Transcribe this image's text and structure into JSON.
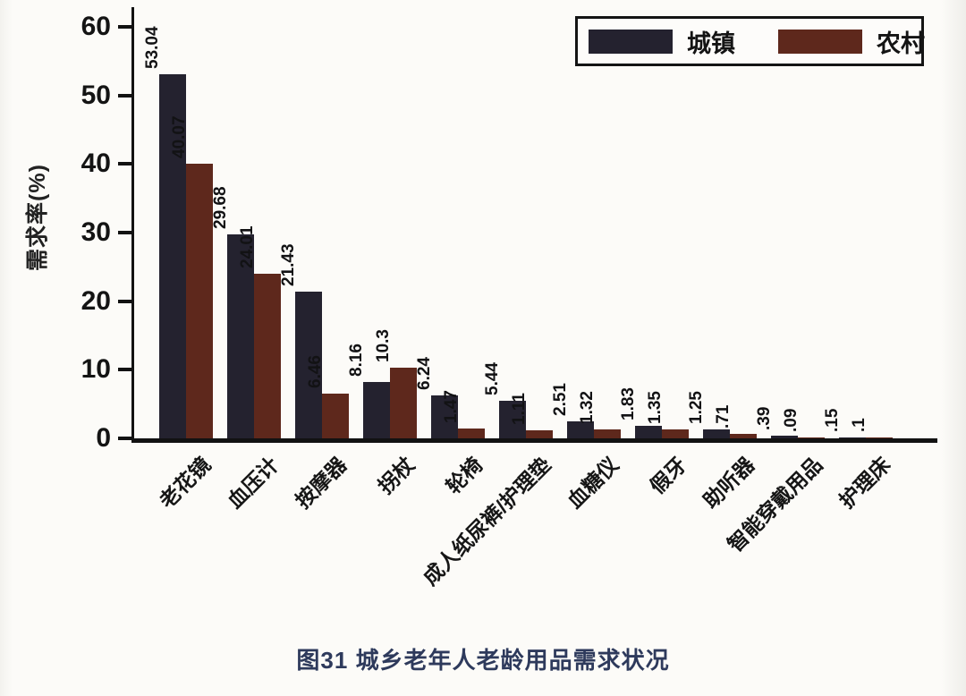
{
  "chart_data": {
    "type": "bar",
    "title": "图31 城乡老年人老龄用品需求状况",
    "xlabel": "",
    "ylabel": "需求率(%)",
    "ylim": [
      0,
      60
    ],
    "yticks": [
      "0",
      "10",
      "20",
      "30",
      "40",
      "50",
      "60"
    ],
    "grid": false,
    "legend_position": "top-right",
    "categories": [
      "老花镜",
      "血压计",
      "按摩器",
      "拐杖",
      "轮椅",
      "成人纸尿裤/护理垫",
      "血糖仪",
      "假牙",
      "助听器",
      "智能穿戴用品",
      "护理床"
    ],
    "series": [
      {
        "name": "城镇",
        "color": "#24222f",
        "values": [
          53.04,
          29.68,
          21.43,
          8.16,
          6.24,
          5.44,
          2.51,
          1.83,
          1.25,
          0.39,
          0.15
        ],
        "labels": [
          "53.04",
          "29.68",
          "21.43",
          "8.16",
          "6.24",
          "5.44",
          "2.51",
          "1.83",
          "1.25",
          ".39",
          ".15"
        ]
      },
      {
        "name": "农村",
        "color": "#5e281c",
        "values": [
          40.07,
          24.01,
          6.46,
          10.3,
          1.47,
          1.11,
          1.32,
          1.35,
          0.71,
          0.09,
          0.1
        ],
        "labels": [
          "40.07",
          "24.01",
          "6.46",
          "10.3",
          "1.47",
          "1.11",
          "1.32",
          "1.35",
          ".71",
          ".09",
          ".1"
        ]
      }
    ]
  },
  "caption": "图31 城乡老年人老龄用品需求状况"
}
